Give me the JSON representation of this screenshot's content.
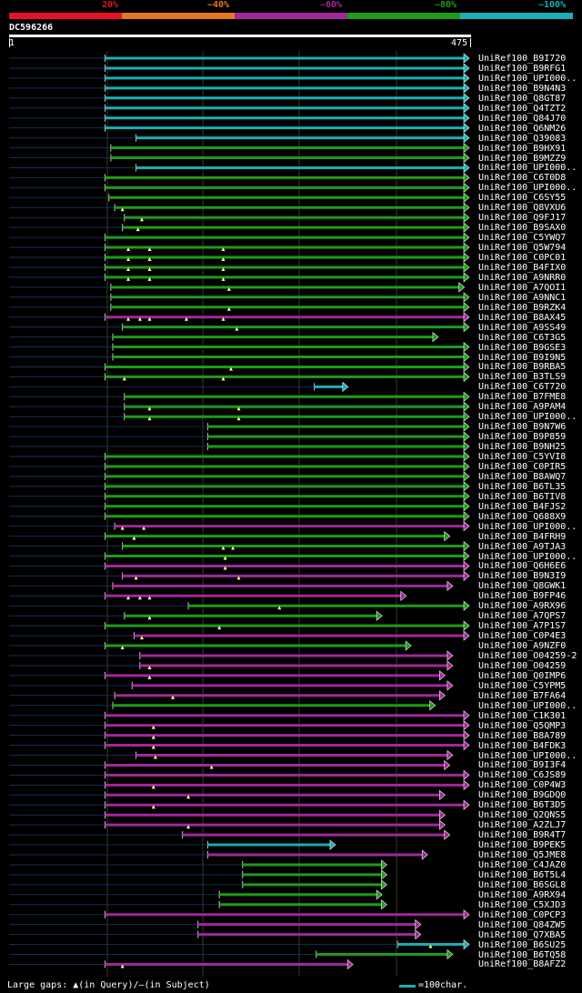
{
  "legend": {
    "labels": [
      "20%",
      "~40%",
      "~60%",
      "~80%",
      "~100%"
    ],
    "colors": [
      "#e8102a",
      "#e8761e",
      "#a0289a",
      "#1f9a1a",
      "#1aaeb4"
    ]
  },
  "query": {
    "id": "DC596266",
    "start": "1",
    "end": "475",
    "length": 475
  },
  "hits": [
    {
      "label": "UniRef100_B9I720",
      "color": "#1aaeb4",
      "start": 100,
      "end": 475,
      "dark_from": 1,
      "gaps": []
    },
    {
      "label": "UniRef100_B9RFG1",
      "color": "#1aaeb4",
      "start": 100,
      "end": 475,
      "dark_from": 1,
      "gaps": []
    },
    {
      "label": "UniRef100_UPI000..",
      "color": "#1aaeb4",
      "start": 100,
      "end": 475,
      "dark_from": 1,
      "gaps": []
    },
    {
      "label": "UniRef100_B9N4N3",
      "color": "#1aaeb4",
      "start": 100,
      "end": 475,
      "dark_from": 1,
      "gaps": []
    },
    {
      "label": "UniRef100_Q8GT87",
      "color": "#1aaeb4",
      "start": 100,
      "end": 475,
      "dark_from": 1,
      "gaps": []
    },
    {
      "label": "UniRef100_Q4TZT2",
      "color": "#1aaeb4",
      "start": 100,
      "end": 475,
      "dark_from": 1,
      "gaps": []
    },
    {
      "label": "UniRef100_Q84J70",
      "color": "#1aaeb4",
      "start": 100,
      "end": 475,
      "dark_from": 1,
      "gaps": []
    },
    {
      "label": "UniRef100_Q6NM26",
      "color": "#1aaeb4",
      "start": 100,
      "end": 475,
      "dark_from": 1,
      "gaps": []
    },
    {
      "label": "UniRef100_Q39083",
      "color": "#1aaeb4",
      "start": 132,
      "end": 475,
      "dark_from": 1,
      "gaps": []
    },
    {
      "label": "UniRef100_B9HX91",
      "color": "#1f9a1a",
      "start": 106,
      "end": 475,
      "dark_from": 1,
      "gaps": []
    },
    {
      "label": "UniRef100_B9MZZ9",
      "color": "#1f9a1a",
      "start": 106,
      "end": 475,
      "dark_from": 1,
      "gaps": []
    },
    {
      "label": "UniRef100_UPI000..",
      "color": "#1aaeb4",
      "start": 132,
      "end": 475,
      "dark_from": 1,
      "gaps": []
    },
    {
      "label": "UniRef100_C6T0D8",
      "color": "#1f9a1a",
      "start": 100,
      "end": 475,
      "dark_from": 1,
      "gaps": []
    },
    {
      "label": "UniRef100_UPI000..",
      "color": "#1f9a1a",
      "start": 100,
      "end": 475,
      "dark_from": 1,
      "gaps": []
    },
    {
      "label": "UniRef100_C6SY55",
      "color": "#1f9a1a",
      "start": 104,
      "end": 475,
      "dark_from": 1,
      "gaps": []
    },
    {
      "label": "UniRef100_Q8VXU6",
      "color": "#1f9a1a",
      "start": 110,
      "end": 475,
      "dark_from": 1,
      "gaps": [
        118
      ]
    },
    {
      "label": "UniRef100_Q9FJ17",
      "color": "#1f9a1a",
      "start": 120,
      "end": 475,
      "dark_from": 1,
      "gaps": [
        138
      ]
    },
    {
      "label": "UniRef100_B9SAX0",
      "color": "#1f9a1a",
      "start": 118,
      "end": 475,
      "dark_from": 1,
      "gaps": [
        134
      ]
    },
    {
      "label": "UniRef100_C5YWQ7",
      "color": "#1f9a1a",
      "start": 100,
      "end": 475,
      "dark_from": 1,
      "gaps": []
    },
    {
      "label": "UniRef100_Q5W794",
      "color": "#1f9a1a",
      "start": 100,
      "end": 475,
      "dark_from": 1,
      "gaps": [
        124,
        146,
        222
      ]
    },
    {
      "label": "UniRef100_C0PC01",
      "color": "#1f9a1a",
      "start": 100,
      "end": 475,
      "dark_from": 1,
      "gaps": [
        124,
        146,
        222
      ]
    },
    {
      "label": "UniRef100_B4FIX0",
      "color": "#1f9a1a",
      "start": 100,
      "end": 475,
      "dark_from": 1,
      "gaps": [
        124,
        146,
        222
      ]
    },
    {
      "label": "UniRef100_A9NRR0",
      "color": "#1f9a1a",
      "start": 100,
      "end": 475,
      "dark_from": 1,
      "gaps": [
        124,
        146,
        222
      ]
    },
    {
      "label": "UniRef100_A7QOI1",
      "color": "#1f9a1a",
      "start": 106,
      "end": 470,
      "dark_from": 1,
      "gaps": [
        228
      ]
    },
    {
      "label": "UniRef100_A9NNC1",
      "color": "#1f9a1a",
      "start": 106,
      "end": 475,
      "dark_from": 1,
      "gaps": []
    },
    {
      "label": "UniRef100_B9RZK4",
      "color": "#1f9a1a",
      "start": 106,
      "end": 475,
      "dark_from": 1,
      "gaps": [
        228
      ]
    },
    {
      "label": "UniRef100_B8AX45",
      "color": "#a0289a",
      "start": 100,
      "end": 475,
      "dark_from": 1,
      "gaps": [
        124,
        136,
        146,
        184,
        222
      ]
    },
    {
      "label": "UniRef100_A9SS49",
      "color": "#1f9a1a",
      "start": 118,
      "end": 475,
      "dark_from": 1,
      "gaps": [
        236
      ]
    },
    {
      "label": "UniRef100_C6T3G5",
      "color": "#1f9a1a",
      "start": 108,
      "end": 443,
      "dark_from": 1,
      "gaps": []
    },
    {
      "label": "UniRef100_B9GSE3",
      "color": "#1f9a1a",
      "start": 108,
      "end": 475,
      "dark_from": 1,
      "gaps": []
    },
    {
      "label": "UniRef100_B9I9N5",
      "color": "#1f9a1a",
      "start": 108,
      "end": 475,
      "dark_from": 1,
      "gaps": []
    },
    {
      "label": "UniRef100_B9RBA5",
      "color": "#1f9a1a",
      "start": 100,
      "end": 475,
      "dark_from": 1,
      "gaps": [
        230
      ]
    },
    {
      "label": "UniRef100_B3TLS9",
      "color": "#1f9a1a",
      "start": 100,
      "end": 475,
      "dark_from": 1,
      "gaps": [
        120,
        222
      ]
    },
    {
      "label": "UniRef100_C6T720",
      "color": "#1aaeb4",
      "start": 316,
      "end": 350,
      "dark_from": 1,
      "gaps": []
    },
    {
      "label": "UniRef100_B7FME8",
      "color": "#1f9a1a",
      "start": 120,
      "end": 475,
      "dark_from": 1,
      "gaps": []
    },
    {
      "label": "UniRef100_A9PAM4",
      "color": "#1f9a1a",
      "start": 120,
      "end": 475,
      "dark_from": 1,
      "gaps": [
        146,
        238
      ]
    },
    {
      "label": "UniRef100_UPI000..",
      "color": "#1f9a1a",
      "start": 120,
      "end": 475,
      "dark_from": 1,
      "gaps": [
        146,
        238
      ]
    },
    {
      "label": "UniRef100_B9N7W6",
      "color": "#1f9a1a",
      "start": 206,
      "end": 475,
      "dark_from": 1,
      "gaps": []
    },
    {
      "label": "UniRef100_B9P859",
      "color": "#1f9a1a",
      "start": 206,
      "end": 475,
      "dark_from": 1,
      "gaps": []
    },
    {
      "label": "UniRef100_B9NH25",
      "color": "#1f9a1a",
      "start": 206,
      "end": 475,
      "dark_from": 1,
      "gaps": []
    },
    {
      "label": "UniRef100_C5YVI8",
      "color": "#1f9a1a",
      "start": 100,
      "end": 475,
      "dark_from": 1,
      "gaps": []
    },
    {
      "label": "UniRef100_C0PIR5",
      "color": "#1f9a1a",
      "start": 100,
      "end": 475,
      "dark_from": 1,
      "gaps": []
    },
    {
      "label": "UniRef100_B8AWQ7",
      "color": "#1f9a1a",
      "start": 100,
      "end": 475,
      "dark_from": 1,
      "gaps": []
    },
    {
      "label": "UniRef100_B6TL35",
      "color": "#1f9a1a",
      "start": 100,
      "end": 475,
      "dark_from": 1,
      "gaps": []
    },
    {
      "label": "UniRef100_B6TIV8",
      "color": "#1f9a1a",
      "start": 100,
      "end": 475,
      "dark_from": 1,
      "gaps": []
    },
    {
      "label": "UniRef100_B4FJS2",
      "color": "#1f9a1a",
      "start": 100,
      "end": 475,
      "dark_from": 1,
      "gaps": []
    },
    {
      "label": "UniRef100_Q688X9",
      "color": "#1f9a1a",
      "start": 100,
      "end": 475,
      "dark_from": 1,
      "gaps": []
    },
    {
      "label": "UniRef100_UPI000..",
      "color": "#a0289a",
      "start": 110,
      "end": 475,
      "dark_from": 1,
      "gaps": [
        118,
        140
      ]
    },
    {
      "label": "UniRef100_B4FRH9",
      "color": "#1f9a1a",
      "start": 100,
      "end": 455,
      "dark_from": 1,
      "gaps": [
        130
      ]
    },
    {
      "label": "UniRef100_A9TJA3",
      "color": "#1f9a1a",
      "start": 118,
      "end": 475,
      "dark_from": 1,
      "gaps": [
        222,
        232
      ]
    },
    {
      "label": "UniRef100_UPI000..",
      "color": "#1f9a1a",
      "start": 100,
      "end": 475,
      "dark_from": 1,
      "gaps": [
        224
      ]
    },
    {
      "label": "UniRef100_Q6H6E6",
      "color": "#a0289a",
      "start": 100,
      "end": 475,
      "dark_from": 1,
      "gaps": [
        224
      ]
    },
    {
      "label": "UniRef100_B9N3I9",
      "color": "#a0289a",
      "start": 118,
      "end": 475,
      "dark_from": 1,
      "gaps": [
        132,
        238
      ]
    },
    {
      "label": "UniRef100_Q8GWK1",
      "color": "#a0289a",
      "start": 108,
      "end": 458,
      "dark_from": 1,
      "gaps": []
    },
    {
      "label": "UniRef100_B9FP46",
      "color": "#a0289a",
      "start": 100,
      "end": 410,
      "dark_from": 1,
      "gaps": [
        124,
        136,
        146
      ]
    },
    {
      "label": "UniRef100_A9RX96",
      "color": "#1f9a1a",
      "start": 186,
      "end": 475,
      "dark_from": 1,
      "gaps": [
        280
      ]
    },
    {
      "label": "UniRef100_A7QPS7",
      "color": "#1f9a1a",
      "start": 120,
      "end": 385,
      "dark_from": 1,
      "gaps": [
        146
      ]
    },
    {
      "label": "UniRef100_A7P1S7",
      "color": "#1f9a1a",
      "start": 100,
      "end": 475,
      "dark_from": 1,
      "gaps": [
        218
      ]
    },
    {
      "label": "UniRef100_C0P4E3",
      "color": "#a0289a",
      "start": 130,
      "end": 475,
      "dark_from": 1,
      "gaps": [
        138
      ]
    },
    {
      "label": "UniRef100_A9NZF0",
      "color": "#1f9a1a",
      "start": 100,
      "end": 415,
      "dark_from": 1,
      "gaps": [
        118
      ]
    },
    {
      "label": "UniRef100_O04259-2",
      "color": "#a0289a",
      "start": 136,
      "end": 458,
      "dark_from": 1,
      "gaps": []
    },
    {
      "label": "UniRef100_O04259",
      "color": "#a0289a",
      "start": 136,
      "end": 458,
      "dark_from": 1,
      "gaps": [
        146
      ]
    },
    {
      "label": "UniRef100_Q0IMP6",
      "color": "#a0289a",
      "start": 100,
      "end": 450,
      "dark_from": 1,
      "gaps": [
        146
      ]
    },
    {
      "label": "UniRef100_C5YPM5",
      "color": "#a0289a",
      "start": 128,
      "end": 458,
      "dark_from": 1,
      "gaps": []
    },
    {
      "label": "UniRef100_B7FA64",
      "color": "#a0289a",
      "start": 110,
      "end": 450,
      "dark_from": 1,
      "gaps": [
        170
      ]
    },
    {
      "label": "UniRef100_UPI000..",
      "color": "#1f9a1a",
      "start": 108,
      "end": 440,
      "dark_from": 1,
      "gaps": []
    },
    {
      "label": "UniRef100_C1K301",
      "color": "#a0289a",
      "start": 100,
      "end": 475,
      "dark_from": 1,
      "gaps": []
    },
    {
      "label": "UniRef100_Q5QMP3",
      "color": "#a0289a",
      "start": 100,
      "end": 475,
      "dark_from": 1,
      "gaps": [
        150
      ]
    },
    {
      "label": "UniRef100_B8A789",
      "color": "#a0289a",
      "start": 100,
      "end": 475,
      "dark_from": 1,
      "gaps": [
        150
      ]
    },
    {
      "label": "UniRef100_B4FDK3",
      "color": "#a0289a",
      "start": 100,
      "end": 475,
      "dark_from": 1,
      "gaps": [
        150
      ]
    },
    {
      "label": "UniRef100_UPI000..",
      "color": "#a0289a",
      "start": 132,
      "end": 458,
      "dark_from": 1,
      "gaps": [
        152
      ]
    },
    {
      "label": "UniRef100_B9I3F4",
      "color": "#a0289a",
      "start": 100,
      "end": 455,
      "dark_from": 1,
      "gaps": [
        210
      ]
    },
    {
      "label": "UniRef100_C6JS89",
      "color": "#a0289a",
      "start": 100,
      "end": 475,
      "dark_from": 1,
      "gaps": []
    },
    {
      "label": "UniRef100_C0P4W3",
      "color": "#a0289a",
      "start": 100,
      "end": 475,
      "dark_from": 1,
      "gaps": [
        150
      ]
    },
    {
      "label": "UniRef100_B9GDQ0",
      "color": "#a0289a",
      "start": 100,
      "end": 450,
      "dark_from": 1,
      "gaps": [
        186
      ]
    },
    {
      "label": "UniRef100_B6T3D5",
      "color": "#a0289a",
      "start": 100,
      "end": 475,
      "dark_from": 1,
      "gaps": [
        150
      ]
    },
    {
      "label": "UniRef100_Q2QNS5",
      "color": "#a0289a",
      "start": 100,
      "end": 450,
      "dark_from": 1,
      "gaps": []
    },
    {
      "label": "UniRef100_A2ZLJ7",
      "color": "#a0289a",
      "start": 100,
      "end": 450,
      "dark_from": 1,
      "gaps": [
        186
      ]
    },
    {
      "label": "UniRef100_B9R4T7",
      "color": "#a0289a",
      "start": 180,
      "end": 455,
      "dark_from": 1,
      "gaps": []
    },
    {
      "label": "UniRef100_B9PEK5",
      "color": "#1aaeb4",
      "start": 206,
      "end": 337,
      "dark_from": 1,
      "gaps": []
    },
    {
      "label": "UniRef100_Q5JME8",
      "color": "#a0289a",
      "start": 206,
      "end": 432,
      "dark_from": 1,
      "gaps": []
    },
    {
      "label": "UniRef100_C4JAZ0",
      "color": "#1f9a1a",
      "start": 242,
      "end": 390,
      "dark_from": 1,
      "gaps": []
    },
    {
      "label": "UniRef100_B6T5L4",
      "color": "#1f9a1a",
      "start": 242,
      "end": 390,
      "dark_from": 1,
      "gaps": []
    },
    {
      "label": "UniRef100_B6SGL8",
      "color": "#1f9a1a",
      "start": 242,
      "end": 390,
      "dark_from": 1,
      "gaps": []
    },
    {
      "label": "UniRef100_A9RX94",
      "color": "#1f9a1a",
      "start": 218,
      "end": 385,
      "dark_from": 1,
      "gaps": []
    },
    {
      "label": "UniRef100_C5XJD3",
      "color": "#1f9a1a",
      "start": 218,
      "end": 390,
      "dark_from": 1,
      "gaps": []
    },
    {
      "label": "UniRef100_C0PCP3",
      "color": "#a0289a",
      "start": 100,
      "end": 475,
      "dark_from": 1,
      "gaps": []
    },
    {
      "label": "UniRef100_Q84ZW5",
      "color": "#a0289a",
      "start": 196,
      "end": 425,
      "dark_from": 1,
      "gaps": []
    },
    {
      "label": "UniRef100_Q7XBA5",
      "color": "#a0289a",
      "start": 196,
      "end": 425,
      "dark_from": 1,
      "gaps": []
    },
    {
      "label": "UniRef100_B6SU25",
      "color": "#1aaeb4",
      "start": 402,
      "end": 475,
      "dark_from": 1,
      "gaps": [
        436
      ]
    },
    {
      "label": "UniRef100_B6TQ58",
      "color": "#1f9a1a",
      "start": 318,
      "end": 458,
      "dark_from": 1,
      "gaps": []
    },
    {
      "label": "UniRef100_B8AFZ2",
      "color": "#a0289a",
      "start": 100,
      "end": 355,
      "dark_from": 1,
      "gaps": [
        118
      ]
    }
  ],
  "footer": {
    "gaps_legend": "Large gaps: ▲(in Query)/—(in Subject)",
    "scale_color": "#1aaeb4",
    "scale_label": "=100char."
  }
}
